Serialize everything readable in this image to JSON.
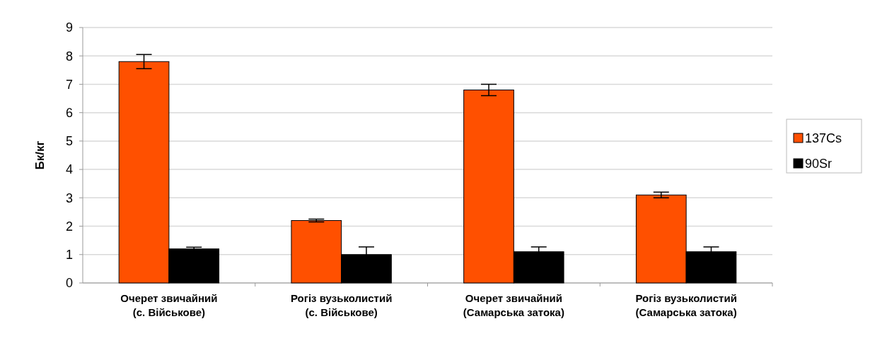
{
  "chart_data": {
    "type": "bar",
    "ylabel": "Бк/кг",
    "categories": [
      "Очерет звичайний (с. Військове)",
      "Рогіз вузьколистий (с. Військове)",
      "Очерет звичайний (Самарська затока)",
      "Рогіз вузьколистий (Самарська затока)"
    ],
    "series": [
      {
        "name": "137Cs",
        "color": "#ff5000",
        "values": [
          7.8,
          2.2,
          6.8,
          3.1
        ],
        "errors": [
          0.25,
          0.05,
          0.2,
          0.1
        ]
      },
      {
        "name": "90Sr",
        "color": "#000000",
        "values": [
          1.2,
          1.0,
          1.1,
          1.1
        ],
        "errors": [
          0.06,
          0.27,
          0.17,
          0.17
        ]
      }
    ],
    "ylim": [
      0,
      9
    ],
    "yticks": [
      0,
      1,
      2,
      3,
      4,
      5,
      6,
      7,
      8,
      9
    ],
    "grid": "y",
    "legend": "right"
  }
}
